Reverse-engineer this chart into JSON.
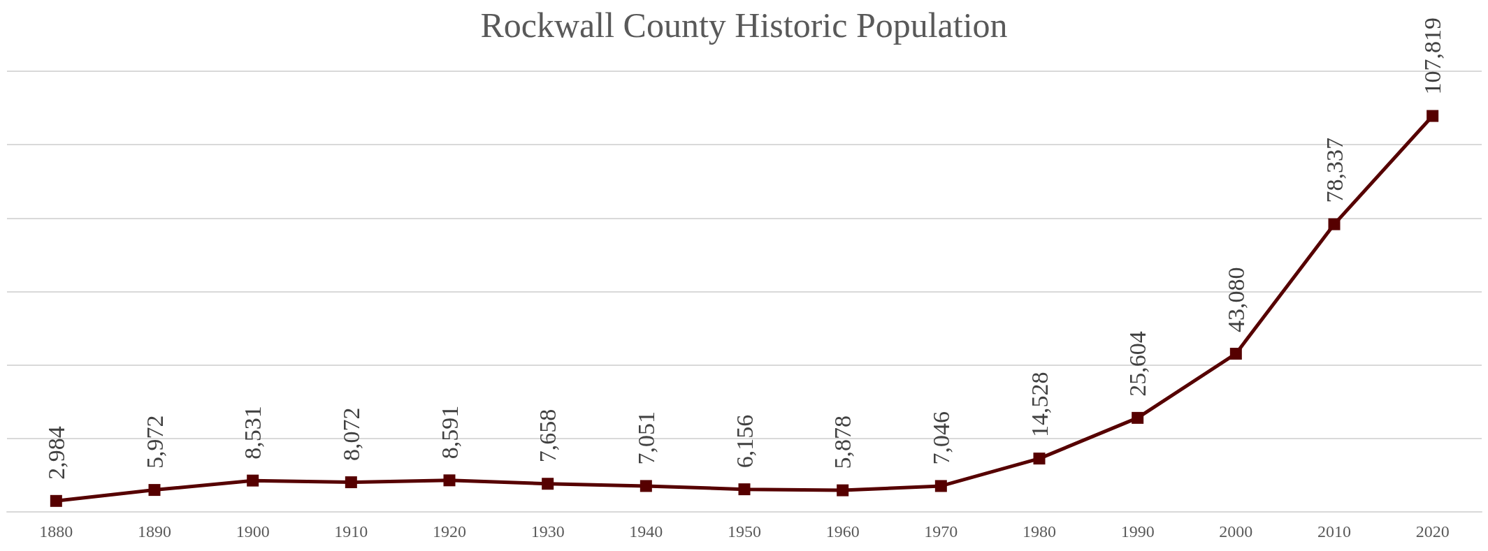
{
  "chart_data": {
    "type": "line",
    "title": "Rockwall County Historic Population",
    "categories": [
      "1880",
      "1890",
      "1900",
      "1910",
      "1920",
      "1930",
      "1940",
      "1950",
      "1960",
      "1970",
      "1980",
      "1990",
      "2000",
      "2010",
      "2020"
    ],
    "values": [
      2984,
      5972,
      8531,
      8072,
      8591,
      7658,
      7051,
      6156,
      5878,
      7046,
      14528,
      25604,
      43080,
      78337,
      107819
    ],
    "value_labels": [
      "2,984",
      "5,972",
      "8,531",
      "8,072",
      "8,591",
      "7,658",
      "7,051",
      "6,156",
      "5,878",
      "7,046",
      "14,528",
      "25,604",
      "43,080",
      "78,337",
      "107,819"
    ],
    "color": "#560000",
    "marker": "square",
    "line_style": "solid",
    "grid": "y",
    "tick_labels": "x"
  }
}
